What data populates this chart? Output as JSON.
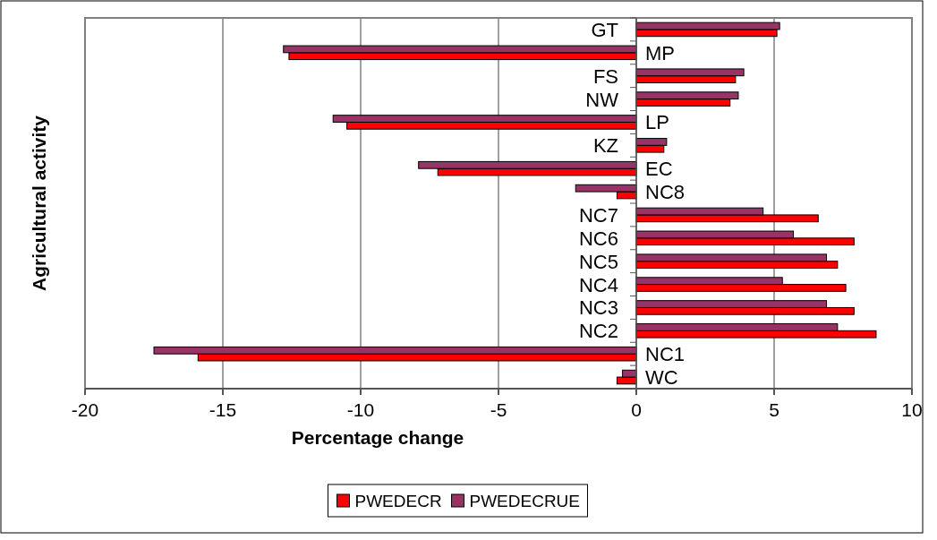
{
  "chart_data": {
    "type": "bar",
    "orientation": "horizontal",
    "xlabel": "Percentage change",
    "ylabel": "Agricultural activity",
    "categories": [
      "GT",
      "MP",
      "FS",
      "NW",
      "LP",
      "KZ",
      "EC",
      "NC8",
      "NC7",
      "NC6",
      "NC5",
      "NC4",
      "NC3",
      "NC2",
      "NC1",
      "WC"
    ],
    "series": [
      {
        "name": "PWEDECR",
        "color": "#ff0000",
        "values": [
          5.1,
          -12.6,
          3.6,
          3.4,
          -10.5,
          1.0,
          -7.2,
          -0.7,
          6.6,
          7.9,
          7.3,
          7.6,
          7.9,
          8.7,
          -15.9,
          -0.7
        ]
      },
      {
        "name": "PWEDECRUE",
        "color": "#993366",
        "values": [
          5.2,
          -12.8,
          3.9,
          3.7,
          -11.0,
          1.1,
          -7.9,
          -2.2,
          4.6,
          5.7,
          6.9,
          5.3,
          6.9,
          7.3,
          -17.5,
          -0.5
        ]
      }
    ],
    "xlim": [
      -20,
      10
    ],
    "xticks": [
      -20,
      -15,
      -10,
      -5,
      0,
      5,
      10
    ],
    "grid": "x",
    "legend": "bottom"
  }
}
